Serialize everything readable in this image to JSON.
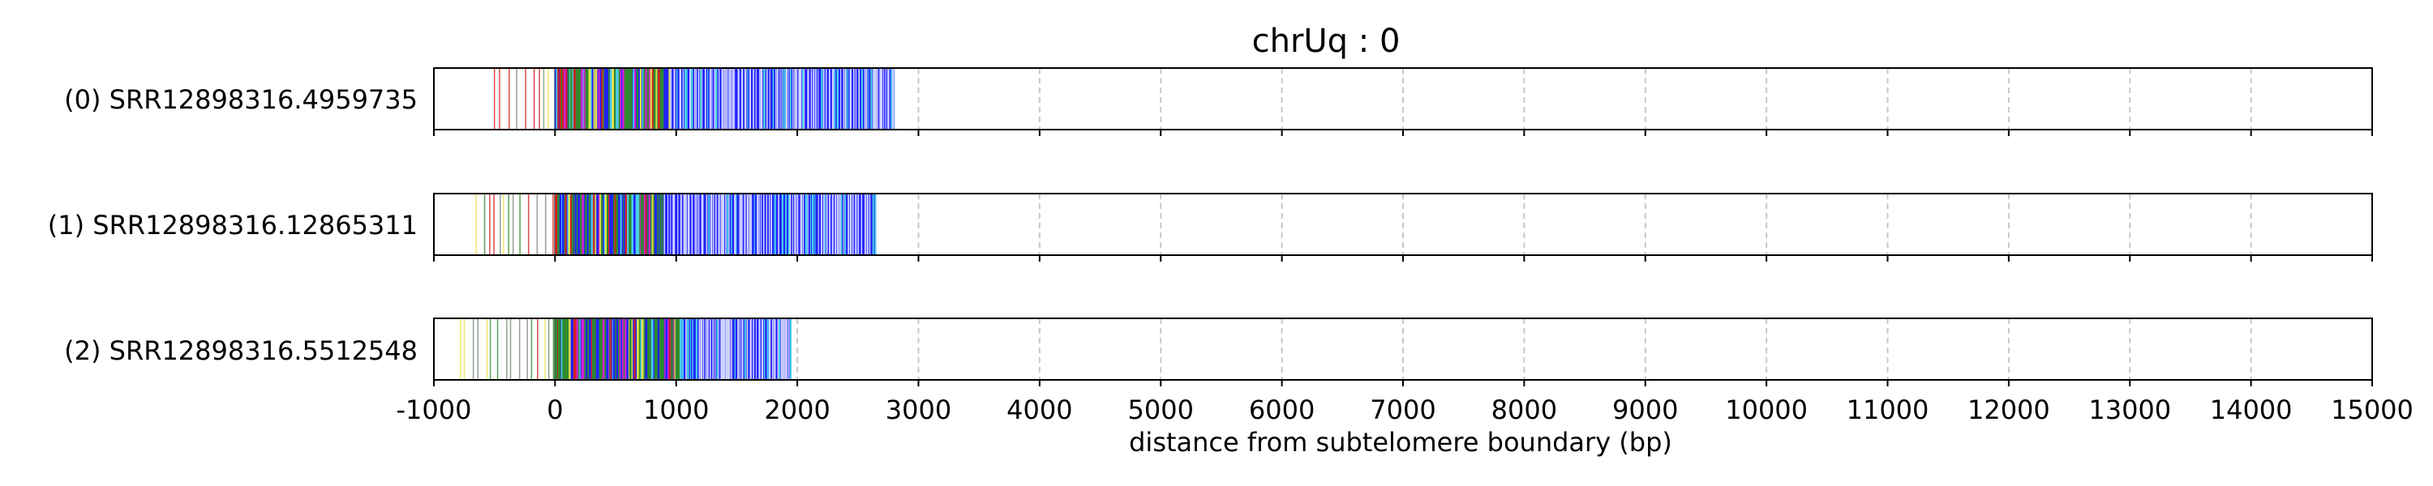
{
  "chart_data": {
    "type": "bar",
    "title": "chrUq : 0",
    "xlabel": "distance from subtelomere boundary (bp)",
    "ylabel": "",
    "xlim": [
      -1000,
      15000
    ],
    "x_ticks": [
      -1000,
      0,
      1000,
      2000,
      3000,
      4000,
      5000,
      6000,
      7000,
      8000,
      9000,
      10000,
      11000,
      12000,
      13000,
      14000,
      15000
    ],
    "grid": "vertical dashed at major ticks",
    "colors": {
      "repeat_blue": "#2222ff",
      "variant_green": "#2e8b2e",
      "variant_red": "#d62020",
      "variant_magenta": "#d020d0",
      "variant_yellow": "#e8e24a",
      "variant_cyan": "#4ad0e8",
      "variant_gray": "#7a8a7a"
    },
    "reads": [
      {
        "label": "(0) SRR12898316.4959735",
        "read_start": -500,
        "tvr_region": [
          0,
          950
        ],
        "repeat_region": [
          950,
          2800
        ],
        "read_end": 2800
      },
      {
        "label": "(1) SRR12898316.12865311",
        "read_start": -650,
        "tvr_region": [
          0,
          900
        ],
        "repeat_region": [
          900,
          2650
        ],
        "read_end": 2650
      },
      {
        "label": "(2) SRR12898316.5512548",
        "read_start": -780,
        "tvr_region": [
          0,
          1050
        ],
        "repeat_region": [
          1050,
          1950
        ],
        "read_end": 1950
      }
    ]
  }
}
